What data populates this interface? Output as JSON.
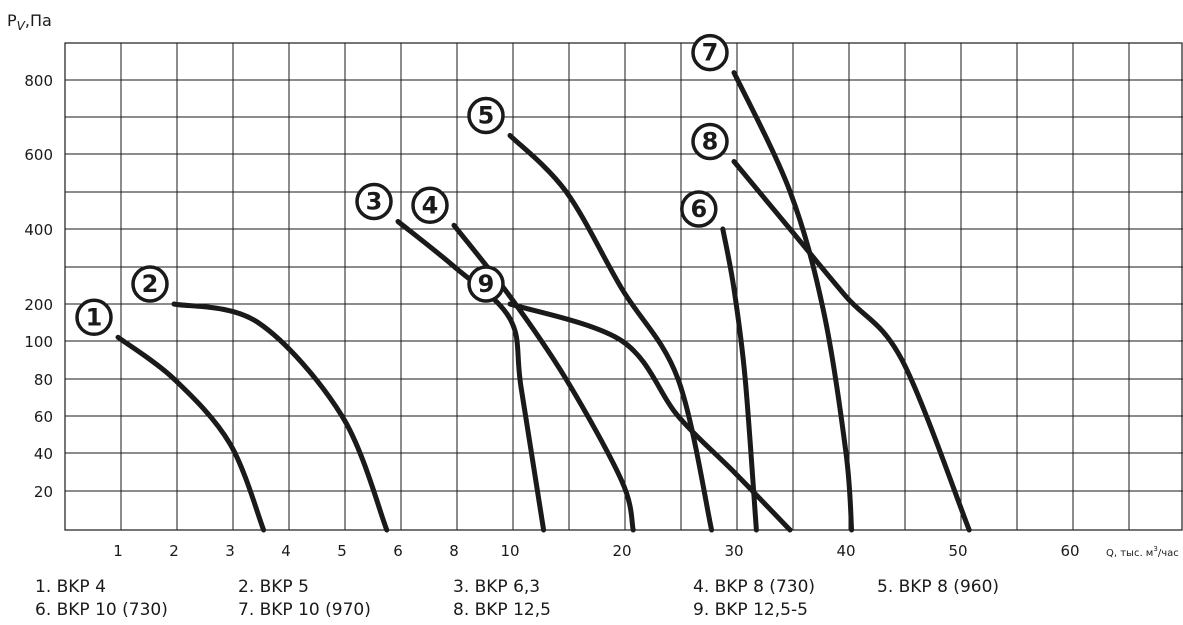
{
  "chart_data": {
    "type": "line",
    "title": "",
    "ylabel_main": "P",
    "ylabel_sub": "V",
    "ylabel_suffix": ",Па",
    "xlabel_main": "Q, тыс. м",
    "xlabel_sup": "3",
    "xlabel_suffix": "/час",
    "x_ticks": [
      "1",
      "2",
      "3",
      "4",
      "5",
      "6",
      "8",
      "10",
      "20",
      "30",
      "40",
      "50",
      "60"
    ],
    "y_ticks": [
      "20",
      "40",
      "60",
      "80",
      "100",
      "200",
      "400",
      "600",
      "800"
    ],
    "grid": true,
    "series": [
      {
        "marker": "1",
        "label": "1. BKP 4",
        "points": [
          [
            1,
            110
          ],
          [
            2,
            80
          ],
          [
            3,
            45
          ],
          [
            3.6,
            0
          ]
        ]
      },
      {
        "marker": "2",
        "label": "2. BKP 5",
        "points": [
          [
            2,
            200
          ],
          [
            3.5,
            150
          ],
          [
            5,
            60
          ],
          [
            5.8,
            0
          ]
        ]
      },
      {
        "marker": "3",
        "label": "3. BKP 6,3",
        "points": [
          [
            6,
            420
          ],
          [
            8,
            300
          ],
          [
            10,
            160
          ],
          [
            11,
            75
          ],
          [
            13,
            0
          ]
        ]
      },
      {
        "marker": "4",
        "label": "4. BKP 8 (730)",
        "points": [
          [
            8,
            410
          ],
          [
            10,
            220
          ],
          [
            15,
            80
          ],
          [
            20,
            25
          ],
          [
            21,
            0
          ]
        ]
      },
      {
        "marker": "5",
        "label": "5. BKP 8 (960)",
        "points": [
          [
            10,
            650
          ],
          [
            15,
            500
          ],
          [
            20,
            240
          ],
          [
            25,
            80
          ],
          [
            28,
            0
          ]
        ]
      },
      {
        "marker": "6",
        "label": "6. BKP 10 (730)",
        "points": [
          [
            29,
            400
          ],
          [
            30,
            240
          ],
          [
            31,
            80
          ],
          [
            32,
            0
          ]
        ]
      },
      {
        "marker": "7",
        "label": "7. BKP 10 (970)",
        "points": [
          [
            30,
            820
          ],
          [
            35,
            500
          ],
          [
            38,
            180
          ],
          [
            40,
            40
          ],
          [
            40.5,
            0
          ]
        ]
      },
      {
        "marker": "8",
        "label": "8. BKP 12,5",
        "points": [
          [
            30,
            580
          ],
          [
            35,
            400
          ],
          [
            40,
            220
          ],
          [
            45,
            90
          ],
          [
            51,
            0
          ]
        ]
      },
      {
        "marker": "9",
        "label": "9. BKP 12,5-5",
        "points": [
          [
            10,
            200
          ],
          [
            20,
            100
          ],
          [
            25,
            60
          ],
          [
            30,
            30
          ],
          [
            35,
            0
          ]
        ]
      }
    ]
  },
  "legend": [
    "1. BKP 4",
    "2. BKP 5",
    "3. BKP 6,3",
    "4. BKP 8 (730)",
    "5. BKP 8 (960)",
    "6. BKP 10 (730)",
    "7. BKP 10 (970)",
    "8. BKP 12,5",
    "9. BKP 12,5-5"
  ],
  "colors": {
    "line": "#1a1a1a",
    "grid": "#1a1a1a",
    "background": "#ffffff"
  }
}
